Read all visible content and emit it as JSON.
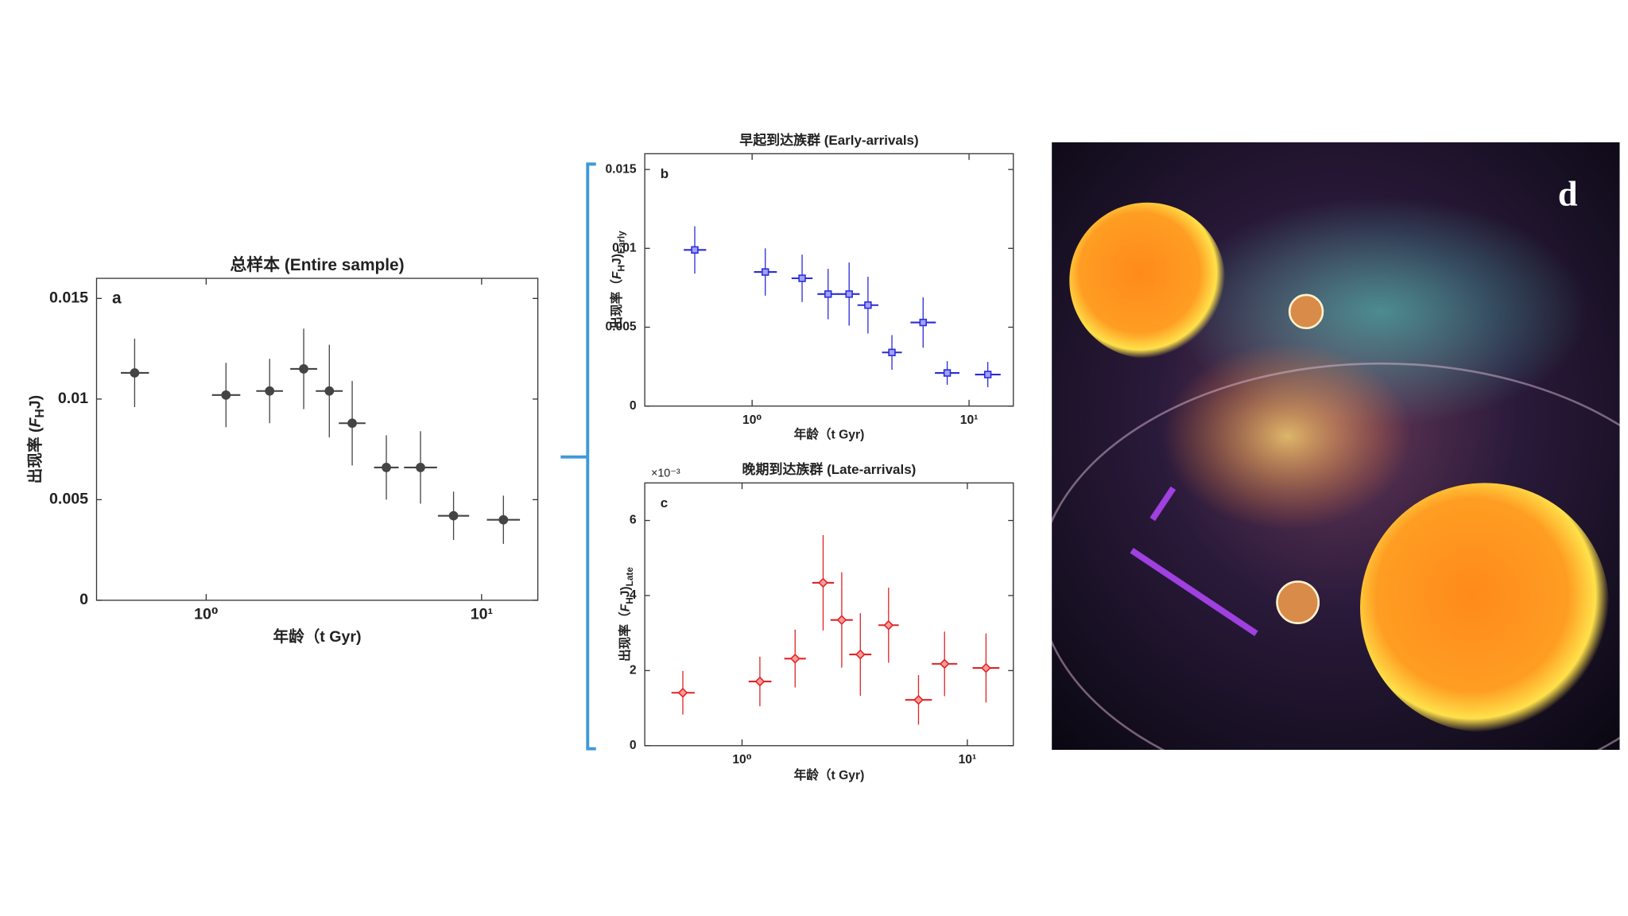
{
  "chart_data": [
    {
      "type": "scatter",
      "panel_label": "a",
      "title": "总样本 (Entire sample)",
      "x_label": "年龄（t Gyr)",
      "y_label": [
        "出现率 (",
        "F",
        "H",
        "J)"
      ],
      "xlog": true,
      "xlim": [
        0.4,
        16
      ],
      "xticks": [
        {
          "value": 1,
          "label": "10⁰"
        },
        {
          "value": 10,
          "label": "10¹"
        }
      ],
      "ylim": [
        0,
        0.016
      ],
      "yticks": [
        0,
        0.005,
        0.01,
        0.015
      ],
      "series": [
        {
          "color": "#444444",
          "marker": "circle",
          "x": [
            0.55,
            1.18,
            1.7,
            2.26,
            2.8,
            3.39,
            4.51,
            6.0,
            7.91,
            12.0
          ],
          "values": [
            0.0113,
            0.0102,
            0.0104,
            0.0115,
            0.0104,
            0.0088,
            0.0066,
            0.0066,
            0.0042,
            0.004
          ],
          "yerr": [
            0.0017,
            0.0016,
            0.0016,
            0.002,
            0.0023,
            0.0021,
            0.0016,
            0.0018,
            0.0012,
            0.0012
          ],
          "xerr": [
            [
              0.06,
              0.07
            ],
            [
              0.13,
              0.15
            ],
            [
              0.18,
              0.2
            ],
            [
              0.24,
              0.27
            ],
            [
              0.3,
              0.33
            ],
            [
              0.36,
              0.4
            ],
            [
              0.44,
              0.49
            ],
            [
              0.77,
              0.89
            ],
            [
              0.97,
              1.1
            ],
            [
              1.55,
              1.78
            ]
          ]
        }
      ]
    },
    {
      "type": "scatter",
      "panel_label": "b",
      "title": "早起到达族群 (Early-arrivals)",
      "x_label": "年龄（t Gyr)",
      "y_label": [
        "出现率（",
        "F",
        "H",
        "J)",
        "Early"
      ],
      "xlog": true,
      "xlim": [
        0.32,
        16
      ],
      "xticks": [
        {
          "value": 1,
          "label": "10⁰"
        },
        {
          "value": 10,
          "label": "10¹"
        }
      ],
      "ylim": [
        0,
        0.016
      ],
      "yticks": [
        0,
        0.005,
        0.01,
        0.015
      ],
      "series": [
        {
          "color": "#2b2bd6",
          "marker": "square",
          "x": [
            0.544,
            1.15,
            1.7,
            2.24,
            2.8,
            3.42,
            4.41,
            6.14,
            7.93,
            12.2
          ],
          "values": [
            0.0099,
            0.0085,
            0.0081,
            0.0071,
            0.0071,
            0.0064,
            0.0034,
            0.0053,
            0.0021,
            0.002
          ],
          "yerr": [
            0.0015,
            0.0015,
            0.0015,
            0.0016,
            0.002,
            0.0018,
            0.0011,
            0.0016,
            0.00075,
            0.0008
          ],
          "xerr": [
            [
              0.06,
              0.07
            ],
            [
              0.13,
              0.15
            ],
            [
              0.18,
              0.2
            ],
            [
              0.24,
              0.27
            ],
            [
              0.3,
              0.33
            ],
            [
              0.36,
              0.4
            ],
            [
              0.44,
              0.49
            ],
            [
              0.77,
              0.89
            ],
            [
              0.97,
              1.1
            ],
            [
              1.55,
              1.78
            ]
          ]
        }
      ]
    },
    {
      "type": "scatter",
      "panel_label": "c",
      "title": "晚期到达族群 (Late-arrivals)",
      "x_label": "年龄（t Gyr)",
      "y_label": [
        "出现率（",
        "F",
        "H",
        "J)",
        "Late"
      ],
      "y_exponent_label": "×10⁻³",
      "xlog": true,
      "xlim": [
        0.37,
        16
      ],
      "xticks": [
        {
          "value": 1,
          "label": "10⁰"
        },
        {
          "value": 10,
          "label": "10¹"
        }
      ],
      "ylim": [
        0,
        0.007
      ],
      "yticks": [
        0,
        {
          "value": 0.002,
          "label": "2"
        },
        {
          "value": 0.004,
          "label": "4"
        },
        {
          "value": 0.006,
          "label": "6"
        }
      ],
      "series": [
        {
          "color": "#e02424",
          "marker": "diamond",
          "x": [
            0.546,
            1.2,
            1.72,
            2.29,
            2.77,
            3.35,
            4.47,
            6.07,
            7.92,
            12.1
          ],
          "values": [
            0.00141,
            0.00171,
            0.00232,
            0.00434,
            0.00335,
            0.00243,
            0.00321,
            0.00122,
            0.00218,
            0.00207
          ],
          "yerr": [
            0.00058,
            0.00066,
            0.00077,
            0.00127,
            0.00127,
            0.0011,
            0.001,
            0.00066,
            0.00086,
            0.00092
          ],
          "xerr": [
            [
              0.06,
              0.07
            ],
            [
              0.13,
              0.15
            ],
            [
              0.18,
              0.2
            ],
            [
              0.24,
              0.27
            ],
            [
              0.3,
              0.33
            ],
            [
              0.36,
              0.4
            ],
            [
              0.44,
              0.49
            ],
            [
              0.77,
              0.89
            ],
            [
              0.97,
              1.1
            ],
            [
              1.55,
              1.78
            ]
          ]
        }
      ]
    }
  ],
  "illustration": {
    "label": "d"
  }
}
